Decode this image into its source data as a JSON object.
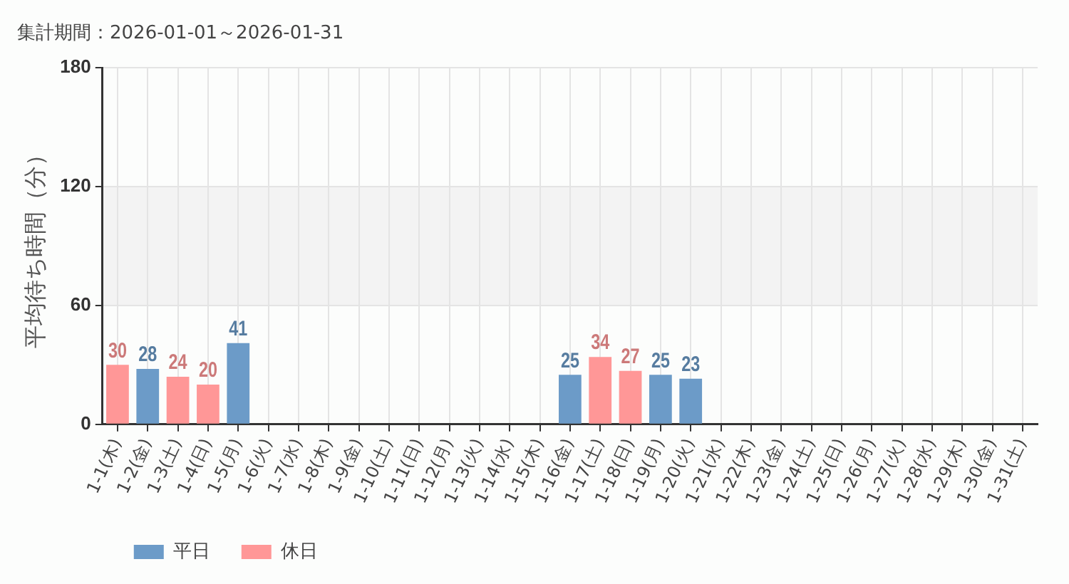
{
  "chart_data": {
    "type": "bar",
    "title": "集計期間：2026-01-01～2026-01-31",
    "ylabel": "平均待ち時間（分）",
    "categories": [
      "1-1(木)",
      "1-2(金)",
      "1-3(土)",
      "1-4(日)",
      "1-5(月)",
      "1-6(火)",
      "1-7(水)",
      "1-8(木)",
      "1-9(金)",
      "1-10(土)",
      "1-11(日)",
      "1-12(月)",
      "1-13(火)",
      "1-14(水)",
      "1-15(木)",
      "1-16(金)",
      "1-17(土)",
      "1-18(日)",
      "1-19(月)",
      "1-20(火)",
      "1-21(水)",
      "1-22(木)",
      "1-23(金)",
      "1-24(土)",
      "1-25(日)",
      "1-26(月)",
      "1-27(火)",
      "1-28(水)",
      "1-29(木)",
      "1-30(金)",
      "1-31(土)"
    ],
    "series": [
      {
        "name": "平日",
        "color": "#6c9bc8",
        "values": [
          null,
          28,
          null,
          null,
          41,
          null,
          null,
          null,
          null,
          null,
          null,
          null,
          null,
          null,
          null,
          25,
          null,
          null,
          25,
          23,
          null,
          null,
          null,
          null,
          null,
          null,
          null,
          null,
          null,
          null,
          null
        ]
      },
      {
        "name": "休日",
        "color": "#ff9797",
        "values": [
          30,
          null,
          24,
          20,
          null,
          null,
          null,
          null,
          null,
          null,
          null,
          null,
          null,
          null,
          null,
          null,
          34,
          27,
          null,
          null,
          null,
          null,
          null,
          null,
          null,
          null,
          null,
          null,
          null,
          null,
          null
        ]
      }
    ],
    "ylim": [
      0,
      180
    ],
    "yticks": [
      0,
      60,
      120,
      180
    ],
    "grid": true,
    "legend": "bottom left",
    "data_labels": true,
    "bands": [
      {
        "axis": "y",
        "from": 60,
        "to": 120,
        "color": "#f3f3f3"
      }
    ]
  }
}
